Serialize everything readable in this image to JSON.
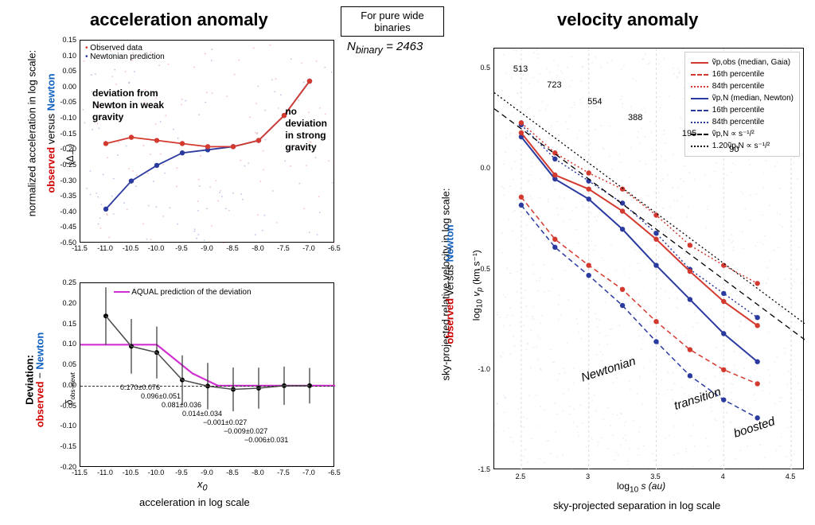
{
  "titles": {
    "left": "acceleration anomaly",
    "right": "velocity anomaly",
    "box": "For pure wide binaries",
    "nbinary_label": "N",
    "nbinary_sub": "binary",
    "nbinary_val": "= 2463"
  },
  "yaxis_labels": {
    "top_line1": "normalized acceleration in log scale:",
    "top_obs": "observed",
    "top_vs": " versus ",
    "top_newt": "Newton",
    "bot_line1": "Deviation:",
    "bot_obs": "observed",
    "bot_minus": " − ",
    "bot_newt": "Newton",
    "right_line1": "sky-projected relative velocity in log scale:",
    "right_obs": "observed",
    "right_vs": " versus ",
    "right_newt": "Newton"
  },
  "xaxis_labels": {
    "left": "acceleration in log scale",
    "right": "sky-projected separation in log scale",
    "left_sym_a": "x",
    "left_sym_b": "0",
    "right_sym_a": "log",
    "right_sym_b": "10",
    "right_sym_c": " s  (au)"
  },
  "top_chart": {
    "xlim": [
      -11.5,
      -6.5
    ],
    "ylim": [
      -0.5,
      0.15
    ],
    "xticks": [
      "-11.5",
      "-11.0",
      "-10.5",
      "-10.0",
      "-9.5",
      "-9.0",
      "-8.5",
      "-8.0",
      "-7.5",
      "-7.0",
      "-6.5"
    ],
    "yticks": [
      "-0.50",
      "-0.45",
      "-0.40",
      "-0.35",
      "-0.30",
      "-0.25",
      "-0.20",
      "-0.15",
      "-0.10",
      "-0.05",
      "0.00",
      "0.05",
      "0.10",
      "0.15"
    ],
    "legend": {
      "obs": "Observed data",
      "newt": "Newtonian prediction"
    },
    "text1a": "deviation from",
    "text1b": "Newton in weak",
    "text1c": "gravity",
    "text2a": "no",
    "text2b": "deviation",
    "text2c": "in strong",
    "text2d": "gravity",
    "ylabel_sym": "⟨Δ⊥⟩",
    "x_pts": [
      -11.0,
      -10.5,
      -10.0,
      -9.5,
      -9.0,
      -8.5,
      -8.0,
      -7.5,
      -7.0
    ],
    "obs_y": [
      -0.18,
      -0.16,
      -0.17,
      -0.18,
      -0.19,
      -0.19,
      -0.17,
      -0.09,
      0.02
    ],
    "newt_y": [
      -0.39,
      -0.3,
      -0.25,
      -0.21,
      -0.2,
      -0.19,
      -0.17,
      -0.09,
      0.02
    ],
    "colors": {
      "obs": "#d33a2f",
      "newt": "#2a3a9e",
      "scatter_op": 0.15
    }
  },
  "bot_chart": {
    "xlim": [
      -11.5,
      -6.5
    ],
    "ylim": [
      -0.2,
      0.25
    ],
    "xticks": [
      "-11.5",
      "-11.0",
      "-10.5",
      "-10.0",
      "-9.5",
      "-9.0",
      "-8.5",
      "-8.0",
      "-7.5",
      "-7.0",
      "-6.5"
    ],
    "yticks": [
      "-0.20",
      "-0.15",
      "-0.10",
      "-0.05",
      "0.00",
      "0.05",
      "0.10",
      "0.15",
      "0.20",
      "0.25"
    ],
    "legend": "AQUAL prediction of the deviation",
    "ylabel_a": "δ",
    "ylabel_b": "obs−newt",
    "x_pts": [
      -11.0,
      -10.5,
      -10.0,
      -9.5,
      -9.0,
      -8.5,
      -8.0,
      -7.5,
      -7.0
    ],
    "dev_y": [
      0.17,
      0.096,
      0.081,
      0.014,
      -0.001,
      -0.009,
      -0.006,
      0.0,
      0.0
    ],
    "vals": [
      "0.170±0.076",
      "0.096±0.051",
      "0.081±0.036",
      "0.014±0.034",
      "−0.001±0.027",
      "−0.009±0.027",
      "−0.006±0.031"
    ],
    "aqual_color": "#d030d0",
    "curve_color": "#4a4a4a"
  },
  "right_chart": {
    "xlim": [
      2.3,
      4.6
    ],
    "ylim": [
      -1.5,
      0.6
    ],
    "xticks_pos": [
      2.5,
      3.0,
      3.5,
      4.0,
      4.5
    ],
    "xticks": [
      "2.5",
      "3",
      "3.5",
      "4",
      "4.5"
    ],
    "yticks_pos": [
      -1.5,
      -1.0,
      -0.5,
      0.0,
      0.5
    ],
    "yticks": [
      "-1.5",
      "-1.0",
      "-0.5",
      "0.0",
      "0.5"
    ],
    "ylabel_a": "log",
    "ylabel_b": "10",
    "ylabel_c": " v",
    "ylabel_d": "p",
    "ylabel_e": "   (km s⁻¹)",
    "legend": {
      "l1": "ṽp,obs (median, Gaia)",
      "l2": "16th percentile",
      "l3": "84th percentile",
      "l4": "ṽp,N (median, Newton)",
      "l5": "16th percentile",
      "l6": "84th percentile",
      "l7": "ṽp,N ∝ s⁻¹/²",
      "l8": "1.20ṽp,N ∝ s⁻¹/²"
    },
    "bin_counts": {
      "positions": [
        2.5,
        2.75,
        3.05,
        3.35,
        3.75,
        4.1
      ],
      "labels": [
        "513",
        "723",
        "554",
        "388",
        "195",
        "90"
      ]
    },
    "words": {
      "w1": "Newtonian",
      "w2": "transition",
      "w3": "boosted"
    },
    "x_pts": [
      2.5,
      2.75,
      3.0,
      3.25,
      3.5,
      3.75,
      4.0,
      4.25
    ],
    "obs_med": [
      0.18,
      -0.03,
      -0.1,
      -0.21,
      -0.35,
      -0.51,
      -0.66,
      -0.78
    ],
    "obs_16": [
      -0.14,
      -0.35,
      -0.48,
      -0.6,
      -0.76,
      -0.9,
      -1.0,
      -1.07
    ],
    "obs_84": [
      0.23,
      0.08,
      -0.02,
      -0.1,
      -0.23,
      -0.38,
      -0.48,
      -0.57
    ],
    "nwt_med": [
      0.16,
      -0.05,
      -0.15,
      -0.3,
      -0.48,
      -0.65,
      -0.82,
      -0.96
    ],
    "nwt_16": [
      -0.18,
      -0.39,
      -0.53,
      -0.68,
      -0.86,
      -1.03,
      -1.15,
      -1.24
    ],
    "nwt_84": [
      0.22,
      0.05,
      -0.06,
      -0.17,
      -0.32,
      -0.5,
      -0.62,
      -0.74
    ],
    "colors": {
      "obs": "#d33a2f",
      "newt": "#2a3a9e",
      "black": "#000",
      "grey": "#666"
    }
  }
}
